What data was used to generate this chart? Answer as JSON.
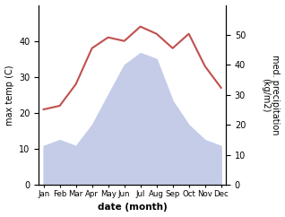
{
  "months": [
    "Jan",
    "Feb",
    "Mar",
    "Apr",
    "May",
    "Jun",
    "Jul",
    "Aug",
    "Sep",
    "Oct",
    "Nov",
    "Dec"
  ],
  "temperature": [
    21,
    22,
    28,
    38,
    41,
    40,
    44,
    42,
    38,
    42,
    33,
    27
  ],
  "precipitation": [
    13,
    15,
    13,
    20,
    30,
    40,
    44,
    42,
    28,
    20,
    15,
    13
  ],
  "temp_color": "#c0504d",
  "precip_fill_color": "#c5cce8",
  "ylabel_left": "max temp (C)",
  "ylabel_right": "med. precipitation\n(kg/m2)",
  "xlabel": "date (month)",
  "ylim_left": [
    0,
    50
  ],
  "ylim_right": [
    0,
    60
  ],
  "yticks_left": [
    0,
    10,
    20,
    30,
    40
  ],
  "yticks_right": [
    0,
    10,
    20,
    30,
    40,
    50
  ],
  "background_color": "#ffffff",
  "figsize": [
    3.18,
    2.42
  ],
  "dpi": 100
}
